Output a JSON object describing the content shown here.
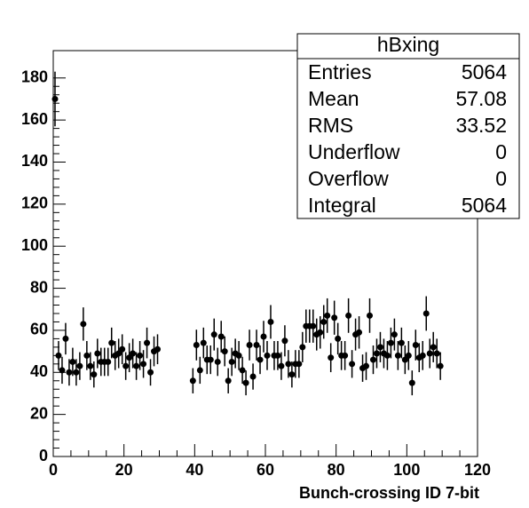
{
  "chart_data": {
    "type": "histogram",
    "x_label": "Bunch-crossing ID 7-bit",
    "bins": [
      0,
      1,
      2,
      3,
      4,
      5,
      6,
      7,
      8,
      9,
      10,
      11,
      12,
      13,
      14,
      15,
      16,
      17,
      18,
      19,
      20,
      21,
      22,
      23,
      24,
      25,
      26,
      27,
      28,
      29,
      30,
      31,
      32,
      33,
      34,
      35,
      36,
      37,
      38,
      39,
      40,
      41,
      42,
      43,
      44,
      45,
      46,
      47,
      48,
      49,
      50,
      51,
      52,
      53,
      54,
      55,
      56,
      57,
      58,
      59,
      60,
      61,
      62,
      63,
      64,
      65,
      66,
      67,
      68,
      69,
      70,
      71,
      72,
      73,
      74,
      75,
      76,
      77,
      78,
      79,
      80,
      81,
      82,
      83,
      84,
      85,
      86,
      87,
      88,
      89,
      90,
      91,
      92,
      93,
      94,
      95,
      96,
      97,
      98,
      99,
      100,
      101,
      102,
      103,
      104,
      105,
      106,
      107,
      108,
      109,
      110
    ],
    "values": [
      170,
      48,
      41,
      56,
      40,
      45,
      40,
      43,
      63,
      48,
      43,
      39,
      49,
      45,
      45,
      45,
      54,
      48,
      49,
      51,
      43,
      47,
      49,
      43,
      48,
      44,
      54,
      40,
      50,
      51,
      null,
      null,
      null,
      null,
      null,
      null,
      null,
      null,
      null,
      36,
      53,
      41,
      54,
      46,
      46,
      58,
      45,
      57,
      50,
      36,
      45,
      49,
      48,
      41,
      35,
      53,
      38,
      53,
      46,
      57,
      48,
      64,
      48,
      48,
      43,
      55,
      44,
      39,
      44,
      44,
      52,
      62,
      62,
      62,
      58,
      59,
      64,
      67,
      47,
      66,
      56,
      48,
      48,
      67,
      44,
      58,
      59,
      42,
      43,
      67,
      46,
      49,
      52,
      49,
      48,
      54,
      58,
      48,
      54,
      46,
      48,
      35,
      53,
      47,
      48,
      68,
      49,
      52,
      49,
      43
    ],
    "errors": [
      13.0,
      6.9,
      6.4,
      7.5,
      6.3,
      6.7,
      6.3,
      6.6,
      7.9,
      6.9,
      6.6,
      6.2,
      7.0,
      6.7,
      6.7,
      6.7,
      7.3,
      6.9,
      7.0,
      7.1,
      6.6,
      6.9,
      7.0,
      6.6,
      6.9,
      6.6,
      7.3,
      6.3,
      7.1,
      7.1,
      null,
      null,
      null,
      null,
      null,
      null,
      null,
      null,
      null,
      6.0,
      7.3,
      6.4,
      7.3,
      6.8,
      6.8,
      7.6,
      6.7,
      7.5,
      7.1,
      6.0,
      6.7,
      7.0,
      6.9,
      6.4,
      5.9,
      7.3,
      6.2,
      7.3,
      6.8,
      7.5,
      6.9,
      8.0,
      6.9,
      6.9,
      6.6,
      7.4,
      6.6,
      6.2,
      6.6,
      6.6,
      7.2,
      7.9,
      7.9,
      7.9,
      7.6,
      7.7,
      8.0,
      8.2,
      6.9,
      8.1,
      7.5,
      6.9,
      6.9,
      8.2,
      6.6,
      7.6,
      7.7,
      6.5,
      6.6,
      8.2,
      6.8,
      7.0,
      7.2,
      7.0,
      6.9,
      7.3,
      7.6,
      6.9,
      7.3,
      6.8,
      6.9,
      5.9,
      7.3,
      6.9,
      6.9,
      8.2,
      7.0,
      7.2,
      7.0,
      6.6
    ],
    "color": "#000000",
    "xlim": [
      0,
      120
    ],
    "xticks": [
      0,
      20,
      40,
      60,
      80,
      100,
      120
    ],
    "ylim": [
      0,
      193
    ],
    "yticks": [
      0,
      20,
      40,
      60,
      80,
      100,
      120,
      140,
      160,
      180
    ],
    "stats_box": {
      "title": "hBxing",
      "rows": [
        {
          "label": "Entries",
          "value": 5064
        },
        {
          "label": "Mean",
          "value": 57.08
        },
        {
          "label": "RMS",
          "value": 33.52
        },
        {
          "label": "Underflow",
          "value": 0
        },
        {
          "label": "Overflow",
          "value": 0
        },
        {
          "label": "Integral",
          "value": 5064
        }
      ]
    }
  }
}
